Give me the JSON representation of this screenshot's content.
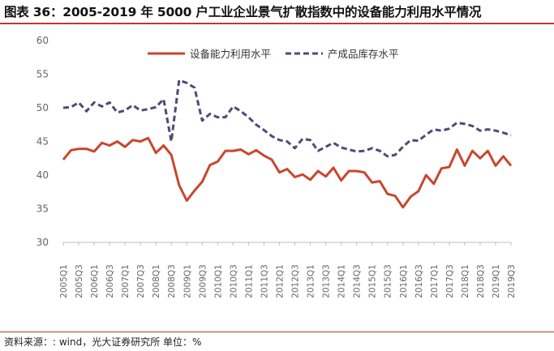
{
  "header": {
    "title": "图表 36：2005-2019 年 5000 户工业企业景气扩散指数中的设备能力利用水平情况"
  },
  "footer": {
    "source": "资料来源：: wind，光大证券研究所   单位：%"
  },
  "colors": {
    "series1": "#c8472e",
    "series2": "#4a4d78",
    "accent": "#c0392b"
  },
  "chart_data": {
    "type": "line",
    "title": "",
    "xlabel": "",
    "ylabel": "",
    "ylim": [
      30,
      60
    ],
    "yticks": [
      30,
      35,
      40,
      45,
      50,
      55,
      60
    ],
    "grid": false,
    "legend_position": "top-center",
    "x_tick_labels": [
      "2005Q1",
      "2005Q3",
      "2006Q1",
      "2006Q3",
      "2007Q1",
      "2007Q3",
      "2008Q1",
      "2008Q3",
      "2009Q1",
      "2009Q3",
      "2010Q1",
      "2010Q3",
      "2011Q1",
      "2011Q3",
      "2012Q1",
      "2012Q3",
      "2013Q1",
      "2013Q3",
      "2014Q1",
      "2014Q3",
      "2015Q1",
      "2015Q3",
      "2016Q1",
      "2016Q3",
      "2017Q1",
      "2017Q3",
      "2018Q1",
      "2018Q3",
      "2019Q1",
      "2019Q3"
    ],
    "x": [
      "2005Q1",
      "2005Q2",
      "2005Q3",
      "2005Q4",
      "2006Q1",
      "2006Q2",
      "2006Q3",
      "2006Q4",
      "2007Q1",
      "2007Q2",
      "2007Q3",
      "2007Q4",
      "2008Q1",
      "2008Q2",
      "2008Q3",
      "2008Q4",
      "2009Q1",
      "2009Q2",
      "2009Q3",
      "2009Q4",
      "2010Q1",
      "2010Q2",
      "2010Q3",
      "2010Q4",
      "2011Q1",
      "2011Q2",
      "2011Q3",
      "2011Q4",
      "2012Q1",
      "2012Q2",
      "2012Q3",
      "2012Q4",
      "2013Q1",
      "2013Q2",
      "2013Q3",
      "2013Q4",
      "2014Q1",
      "2014Q2",
      "2014Q3",
      "2014Q4",
      "2015Q1",
      "2015Q2",
      "2015Q3",
      "2015Q4",
      "2016Q1",
      "2016Q2",
      "2016Q3",
      "2016Q4",
      "2017Q1",
      "2017Q2",
      "2017Q3",
      "2017Q4",
      "2018Q1",
      "2018Q2",
      "2018Q3",
      "2018Q4",
      "2019Q1",
      "2019Q2",
      "2019Q3"
    ],
    "series": [
      {
        "name": "设备能力利用水平",
        "style": "solid",
        "values": [
          42.3,
          43.7,
          43.9,
          43.9,
          43.5,
          44.8,
          44.4,
          45.0,
          44.2,
          45.2,
          45.0,
          45.5,
          43.3,
          44.4,
          43.0,
          38.5,
          36.2,
          37.7,
          39.0,
          41.5,
          42.0,
          43.6,
          43.6,
          43.8,
          43.1,
          43.7,
          42.9,
          42.3,
          40.4,
          40.9,
          39.7,
          40.1,
          39.3,
          40.6,
          39.8,
          41.1,
          39.2,
          40.6,
          40.6,
          40.4,
          38.9,
          39.1,
          37.2,
          36.9,
          35.2,
          36.8,
          37.6,
          40.0,
          38.7,
          41.0,
          41.2,
          43.8,
          41.4,
          43.6,
          42.5,
          43.6,
          41.4,
          42.8,
          41.4
        ]
      },
      {
        "name": "产成品库存水平",
        "style": "dashed",
        "values": [
          50.0,
          50.1,
          50.8,
          49.5,
          50.8,
          50.2,
          50.8,
          49.3,
          49.6,
          50.4,
          49.6,
          49.8,
          50.1,
          51.3,
          45.0,
          54.1,
          53.7,
          53.0,
          48.1,
          49.1,
          48.6,
          48.6,
          50.2,
          49.5,
          48.6,
          47.5,
          46.7,
          45.8,
          45.2,
          45.0,
          44.0,
          45.4,
          45.2,
          43.6,
          44.2,
          44.8,
          44.1,
          43.8,
          43.5,
          43.6,
          44.0,
          43.6,
          42.8,
          43.0,
          44.2,
          45.2,
          45.1,
          46.0,
          46.8,
          46.6,
          46.9,
          47.8,
          47.6,
          47.3,
          46.6,
          46.8,
          46.6,
          46.3,
          45.9
        ]
      }
    ]
  }
}
